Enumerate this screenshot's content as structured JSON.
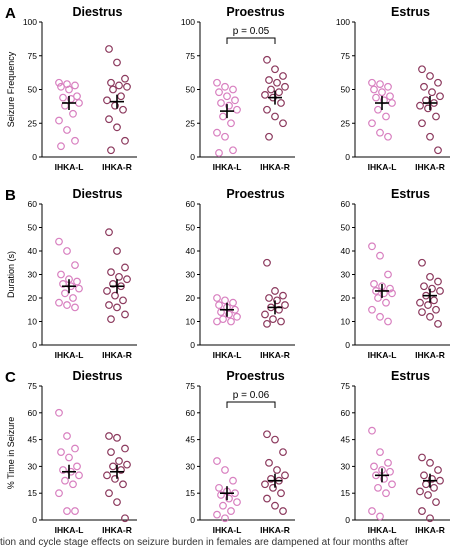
{
  "caption": "tion and cycle stage effects on seizure burden in females are dampened at four months after",
  "colors": {
    "ihka_l": "#d880c0",
    "ihka_r": "#8c3a5e",
    "axis": "#000000"
  },
  "chart_data": [
    {
      "type": "scatter",
      "row_letter": "A",
      "title": "Diestrus",
      "ylabel": "Seizure Frequency",
      "ylim": [
        0,
        100
      ],
      "yticks": [
        0,
        25,
        50,
        75,
        100
      ],
      "categories": [
        "IHKA-L",
        "IHKA-R"
      ],
      "series": [
        {
          "name": "IHKA-L",
          "mean": 40,
          "values": [
            55,
            54,
            53,
            52,
            50,
            45,
            44,
            43,
            40,
            38,
            32,
            27,
            20,
            12,
            8
          ]
        },
        {
          "name": "IHKA-R",
          "mean": 41,
          "values": [
            80,
            70,
            58,
            55,
            53,
            52,
            50,
            45,
            42,
            38,
            35,
            28,
            22,
            12,
            5
          ]
        }
      ]
    },
    {
      "type": "scatter",
      "row_letter": "",
      "title": "Proestrus",
      "ylabel": "",
      "ylim": [
        0,
        100
      ],
      "yticks": [
        0,
        25,
        50,
        75,
        100
      ],
      "categories": [
        "IHKA-L",
        "IHKA-R"
      ],
      "annotation": "p = 0.05",
      "series": [
        {
          "name": "IHKA-L",
          "mean": 34,
          "values": [
            55,
            52,
            50,
            48,
            45,
            42,
            40,
            38,
            35,
            30,
            25,
            18,
            15,
            5,
            3
          ]
        },
        {
          "name": "IHKA-R",
          "mean": 44,
          "values": [
            72,
            65,
            60,
            57,
            55,
            52,
            50,
            48,
            46,
            44,
            40,
            35,
            30,
            25,
            15
          ]
        }
      ]
    },
    {
      "type": "scatter",
      "row_letter": "",
      "title": "Estrus",
      "ylabel": "",
      "ylim": [
        0,
        100
      ],
      "yticks": [
        0,
        25,
        50,
        75,
        100
      ],
      "categories": [
        "IHKA-L",
        "IHKA-R"
      ],
      "series": [
        {
          "name": "IHKA-L",
          "mean": 40,
          "values": [
            55,
            54,
            52,
            50,
            48,
            45,
            44,
            42,
            40,
            35,
            30,
            25,
            18,
            15
          ]
        },
        {
          "name": "IHKA-R",
          "mean": 40,
          "values": [
            65,
            60,
            55,
            52,
            48,
            45,
            42,
            40,
            38,
            36,
            30,
            25,
            15,
            5
          ]
        }
      ]
    },
    {
      "type": "scatter",
      "row_letter": "B",
      "title": "Diestrus",
      "ylabel": "Duration (s)",
      "ylim": [
        0,
        60
      ],
      "yticks": [
        0,
        10,
        20,
        30,
        40,
        50,
        60
      ],
      "categories": [
        "IHKA-L",
        "IHKA-R"
      ],
      "series": [
        {
          "name": "IHKA-L",
          "mean": 25,
          "values": [
            44,
            40,
            34,
            30,
            28,
            27,
            26,
            25,
            24,
            22,
            20,
            18,
            17,
            16
          ]
        },
        {
          "name": "IHKA-R",
          "mean": 25,
          "values": [
            48,
            40,
            33,
            31,
            29,
            28,
            26,
            25,
            23,
            21,
            19,
            17,
            16,
            13,
            11
          ]
        }
      ]
    },
    {
      "type": "scatter",
      "row_letter": "",
      "title": "Proestrus",
      "ylabel": "",
      "ylim": [
        0,
        60
      ],
      "yticks": [
        0,
        10,
        20,
        30,
        40,
        50,
        60
      ],
      "categories": [
        "IHKA-L",
        "IHKA-R"
      ],
      "series": [
        {
          "name": "IHKA-L",
          "mean": 15,
          "values": [
            20,
            19,
            18,
            17,
            16,
            15,
            14,
            13,
            12,
            11,
            10,
            10
          ]
        },
        {
          "name": "IHKA-R",
          "mean": 16,
          "values": [
            35,
            23,
            21,
            20,
            19,
            17,
            16,
            15,
            13,
            11,
            10,
            9
          ]
        }
      ]
    },
    {
      "type": "scatter",
      "row_letter": "",
      "title": "Estrus",
      "ylabel": "",
      "ylim": [
        0,
        60
      ],
      "yticks": [
        0,
        10,
        20,
        30,
        40,
        50,
        60
      ],
      "categories": [
        "IHKA-L",
        "IHKA-R"
      ],
      "series": [
        {
          "name": "IHKA-L",
          "mean": 23,
          "values": [
            42,
            38,
            30,
            26,
            25,
            24,
            23,
            22,
            22,
            20,
            18,
            15,
            12,
            10
          ]
        },
        {
          "name": "IHKA-R",
          "mean": 21,
          "values": [
            35,
            29,
            27,
            25,
            24,
            23,
            21,
            19,
            18,
            17,
            15,
            14,
            12,
            9
          ]
        }
      ]
    },
    {
      "type": "scatter",
      "row_letter": "C",
      "title": "Diestrus",
      "ylabel": "% Time in Seizure",
      "ylim": [
        0,
        75
      ],
      "yticks": [
        0,
        15,
        30,
        45,
        60,
        75
      ],
      "categories": [
        "IHKA-L",
        "IHKA-R"
      ],
      "series": [
        {
          "name": "IHKA-L",
          "mean": 27,
          "values": [
            60,
            47,
            40,
            38,
            35,
            30,
            28,
            27,
            25,
            22,
            20,
            15,
            5,
            5
          ]
        },
        {
          "name": "IHKA-R",
          "mean": 27,
          "values": [
            47,
            46,
            40,
            38,
            33,
            31,
            30,
            28,
            25,
            23,
            20,
            15,
            10,
            1
          ]
        }
      ]
    },
    {
      "type": "scatter",
      "row_letter": "",
      "title": "Proestrus",
      "ylabel": "",
      "ylim": [
        0,
        75
      ],
      "yticks": [
        0,
        15,
        30,
        45,
        60,
        75
      ],
      "categories": [
        "IHKA-L",
        "IHKA-R"
      ],
      "annotation": "p = 0.06",
      "series": [
        {
          "name": "IHKA-L",
          "mean": 15,
          "values": [
            33,
            28,
            22,
            18,
            16,
            15,
            14,
            12,
            10,
            8,
            5,
            3,
            1
          ]
        },
        {
          "name": "IHKA-R",
          "mean": 22,
          "values": [
            48,
            45,
            38,
            32,
            28,
            25,
            23,
            22,
            20,
            18,
            15,
            12,
            8,
            5
          ]
        }
      ]
    },
    {
      "type": "scatter",
      "row_letter": "",
      "title": "Estrus",
      "ylabel": "",
      "ylim": [
        0,
        75
      ],
      "yticks": [
        0,
        15,
        30,
        45,
        60,
        75
      ],
      "categories": [
        "IHKA-L",
        "IHKA-R"
      ],
      "series": [
        {
          "name": "IHKA-L",
          "mean": 25,
          "values": [
            50,
            38,
            32,
            30,
            28,
            27,
            25,
            23,
            20,
            18,
            15,
            5,
            2
          ]
        },
        {
          "name": "IHKA-R",
          "mean": 22,
          "values": [
            35,
            32,
            28,
            25,
            23,
            22,
            20,
            18,
            16,
            14,
            10,
            5,
            1
          ]
        }
      ]
    }
  ]
}
